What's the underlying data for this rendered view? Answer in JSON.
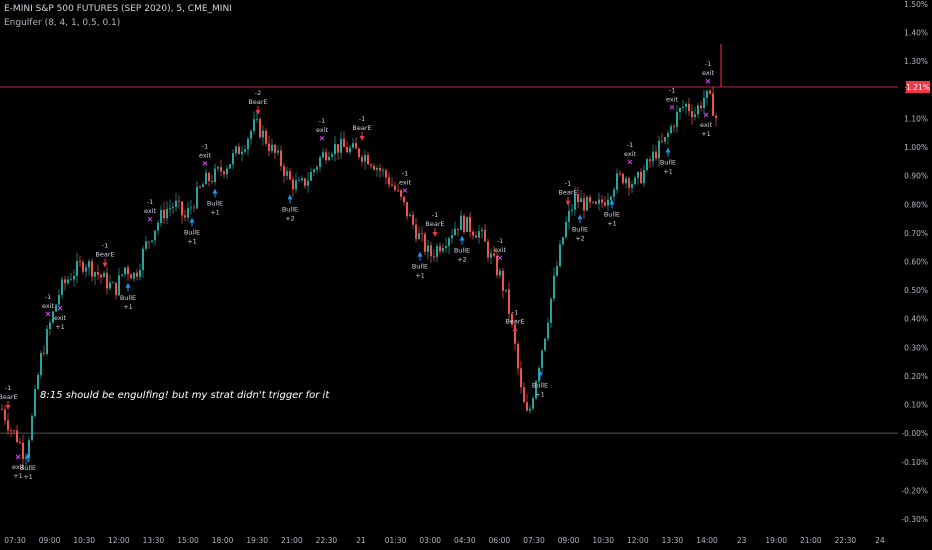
{
  "header": {
    "symbol": "E-MINI S&P 500 FUTURES (SEP 2020), 5, CME_MINI",
    "indicator": "Engulfer (8, 4, 1, 0.5, 0.1)"
  },
  "annotation": {
    "note": "8:15 should be engulfing! but my strat didn't trigger for it"
  },
  "price_label": {
    "value": "1.21%",
    "color": "#f23645"
  },
  "colors": {
    "up": "#26a69a",
    "down": "#ef5350",
    "exit": "#e040fb",
    "long": "#2196f3",
    "short": "#f23645",
    "zero": "#555555"
  },
  "chart_data": {
    "type": "candlestick",
    "ylim": [
      -0.3,
      1.5
    ],
    "y_ticks": [
      "1.50%",
      "1.40%",
      "1.30%",
      "1.20%",
      "1.10%",
      "1.00%",
      "0.90%",
      "0.80%",
      "0.70%",
      "0.60%",
      "0.50%",
      "0.40%",
      "0.30%",
      "0.20%",
      "0.10%",
      "-0.00%",
      "-0.10%",
      "-0.20%",
      "-0.30%"
    ],
    "y_tick_values": [
      1.5,
      1.4,
      1.3,
      1.2,
      1.1,
      1.0,
      0.9,
      0.8,
      0.7,
      0.6,
      0.5,
      0.4,
      0.3,
      0.2,
      0.1,
      0.0,
      -0.1,
      -0.2,
      -0.3
    ],
    "x_ticks": [
      "07:30",
      "09:00",
      "10:30",
      "12:00",
      "13:30",
      "15:00",
      "18:00",
      "19:30",
      "21:00",
      "22:30",
      "21",
      "01:30",
      "03:00",
      "04:30",
      "06:00",
      "07:30",
      "09:00",
      "10:30",
      "12:00",
      "13:30",
      "14:00",
      "23",
      "19:00",
      "21:00",
      "22:30",
      "24"
    ],
    "zero_line": 0.0,
    "price_line": 1.21,
    "path": [
      [
        0,
        0.1
      ],
      [
        10,
        0.02
      ],
      [
        18,
        -0.02
      ],
      [
        25,
        -0.08
      ],
      [
        32,
        0.05
      ],
      [
        40,
        0.25
      ],
      [
        50,
        0.38
      ],
      [
        60,
        0.5
      ],
      [
        70,
        0.55
      ],
      [
        85,
        0.6
      ],
      [
        100,
        0.55
      ],
      [
        115,
        0.5
      ],
      [
        125,
        0.58
      ],
      [
        135,
        0.55
      ],
      [
        145,
        0.65
      ],
      [
        155,
        0.72
      ],
      [
        165,
        0.78
      ],
      [
        175,
        0.8
      ],
      [
        185,
        0.75
      ],
      [
        195,
        0.82
      ],
      [
        205,
        0.88
      ],
      [
        215,
        0.9
      ],
      [
        230,
        0.95
      ],
      [
        245,
        1.02
      ],
      [
        255,
        1.08
      ],
      [
        262,
        1.05
      ],
      [
        270,
        1.0
      ],
      [
        280,
        0.95
      ],
      [
        290,
        0.88
      ],
      [
        300,
        0.86
      ],
      [
        310,
        0.9
      ],
      [
        320,
        0.96
      ],
      [
        330,
        1.0
      ],
      [
        340,
        1.0
      ],
      [
        350,
        0.99
      ],
      [
        360,
        0.98
      ],
      [
        370,
        0.96
      ],
      [
        380,
        0.92
      ],
      [
        390,
        0.88
      ],
      [
        400,
        0.82
      ],
      [
        410,
        0.75
      ],
      [
        420,
        0.68
      ],
      [
        430,
        0.62
      ],
      [
        440,
        0.66
      ],
      [
        450,
        0.7
      ],
      [
        460,
        0.74
      ],
      [
        470,
        0.72
      ],
      [
        480,
        0.7
      ],
      [
        490,
        0.62
      ],
      [
        500,
        0.55
      ],
      [
        508,
        0.45
      ],
      [
        515,
        0.3
      ],
      [
        522,
        0.12
      ],
      [
        528,
        0.05
      ],
      [
        535,
        0.18
      ],
      [
        545,
        0.35
      ],
      [
        555,
        0.55
      ],
      [
        565,
        0.72
      ],
      [
        575,
        0.82
      ],
      [
        585,
        0.8
      ],
      [
        595,
        0.78
      ],
      [
        605,
        0.82
      ],
      [
        615,
        0.88
      ],
      [
        625,
        0.9
      ],
      [
        635,
        0.87
      ],
      [
        645,
        0.92
      ],
      [
        655,
        0.98
      ],
      [
        665,
        1.02
      ],
      [
        675,
        1.1
      ],
      [
        685,
        1.15
      ],
      [
        695,
        1.12
      ],
      [
        705,
        1.18
      ],
      [
        712,
        1.15
      ],
      [
        718,
        1.08
      ]
    ],
    "signals": [
      {
        "x": 8,
        "label": "BearE",
        "count": "-1",
        "kind": "short"
      },
      {
        "x": 18,
        "label": "exit",
        "count": "+1",
        "kind": "exit"
      },
      {
        "x": 28,
        "label": "BullE",
        "count": "+1",
        "kind": "long"
      },
      {
        "x": 48,
        "label": "exit",
        "count": "-1",
        "kind": "exit"
      },
      {
        "x": 60,
        "label": "exit",
        "count": "+1",
        "kind": "exit"
      },
      {
        "x": 105,
        "label": "BearE",
        "count": "-1",
        "kind": "short"
      },
      {
        "x": 128,
        "label": "BullE",
        "count": "+1",
        "kind": "long"
      },
      {
        "x": 150,
        "label": "exit",
        "count": "-1",
        "kind": "exit"
      },
      {
        "x": 192,
        "label": "BullE",
        "count": "+1",
        "kind": "long"
      },
      {
        "x": 205,
        "label": "exit",
        "count": "-1",
        "kind": "exit"
      },
      {
        "x": 215,
        "label": "BullE",
        "count": "+1",
        "kind": "long"
      },
      {
        "x": 258,
        "label": "BearE",
        "count": "-2",
        "kind": "short"
      },
      {
        "x": 290,
        "label": "BullE",
        "count": "+2",
        "kind": "long"
      },
      {
        "x": 322,
        "label": "exit",
        "count": "-1",
        "kind": "exit"
      },
      {
        "x": 362,
        "label": "BearE",
        "count": "-1",
        "kind": "short"
      },
      {
        "x": 405,
        "label": "exit",
        "count": "-1",
        "kind": "exit"
      },
      {
        "x": 420,
        "label": "BullE",
        "count": "+1",
        "kind": "long"
      },
      {
        "x": 435,
        "label": "BearE",
        "count": "-1",
        "kind": "short"
      },
      {
        "x": 462,
        "label": "BullE",
        "count": "+2",
        "kind": "long"
      },
      {
        "x": 500,
        "label": "exit",
        "count": "-1",
        "kind": "exit"
      },
      {
        "x": 515,
        "label": "BearE",
        "count": "-1",
        "kind": "short"
      },
      {
        "x": 540,
        "label": "BullE",
        "count": "+1",
        "kind": "long"
      },
      {
        "x": 568,
        "label": "BearE",
        "count": "-1",
        "kind": "short"
      },
      {
        "x": 580,
        "label": "BullE",
        "count": "+2",
        "kind": "long"
      },
      {
        "x": 612,
        "label": "BullE",
        "count": "+1",
        "kind": "long"
      },
      {
        "x": 630,
        "label": "exit",
        "count": "-1",
        "kind": "exit"
      },
      {
        "x": 668,
        "label": "BullE",
        "count": "+1",
        "kind": "long"
      },
      {
        "x": 672,
        "label": "exit",
        "count": "-1",
        "kind": "exit"
      },
      {
        "x": 706,
        "label": "exit",
        "count": "+1",
        "kind": "exit"
      },
      {
        "x": 708,
        "label": "exit",
        "count": "-1",
        "kind": "exit"
      }
    ]
  }
}
